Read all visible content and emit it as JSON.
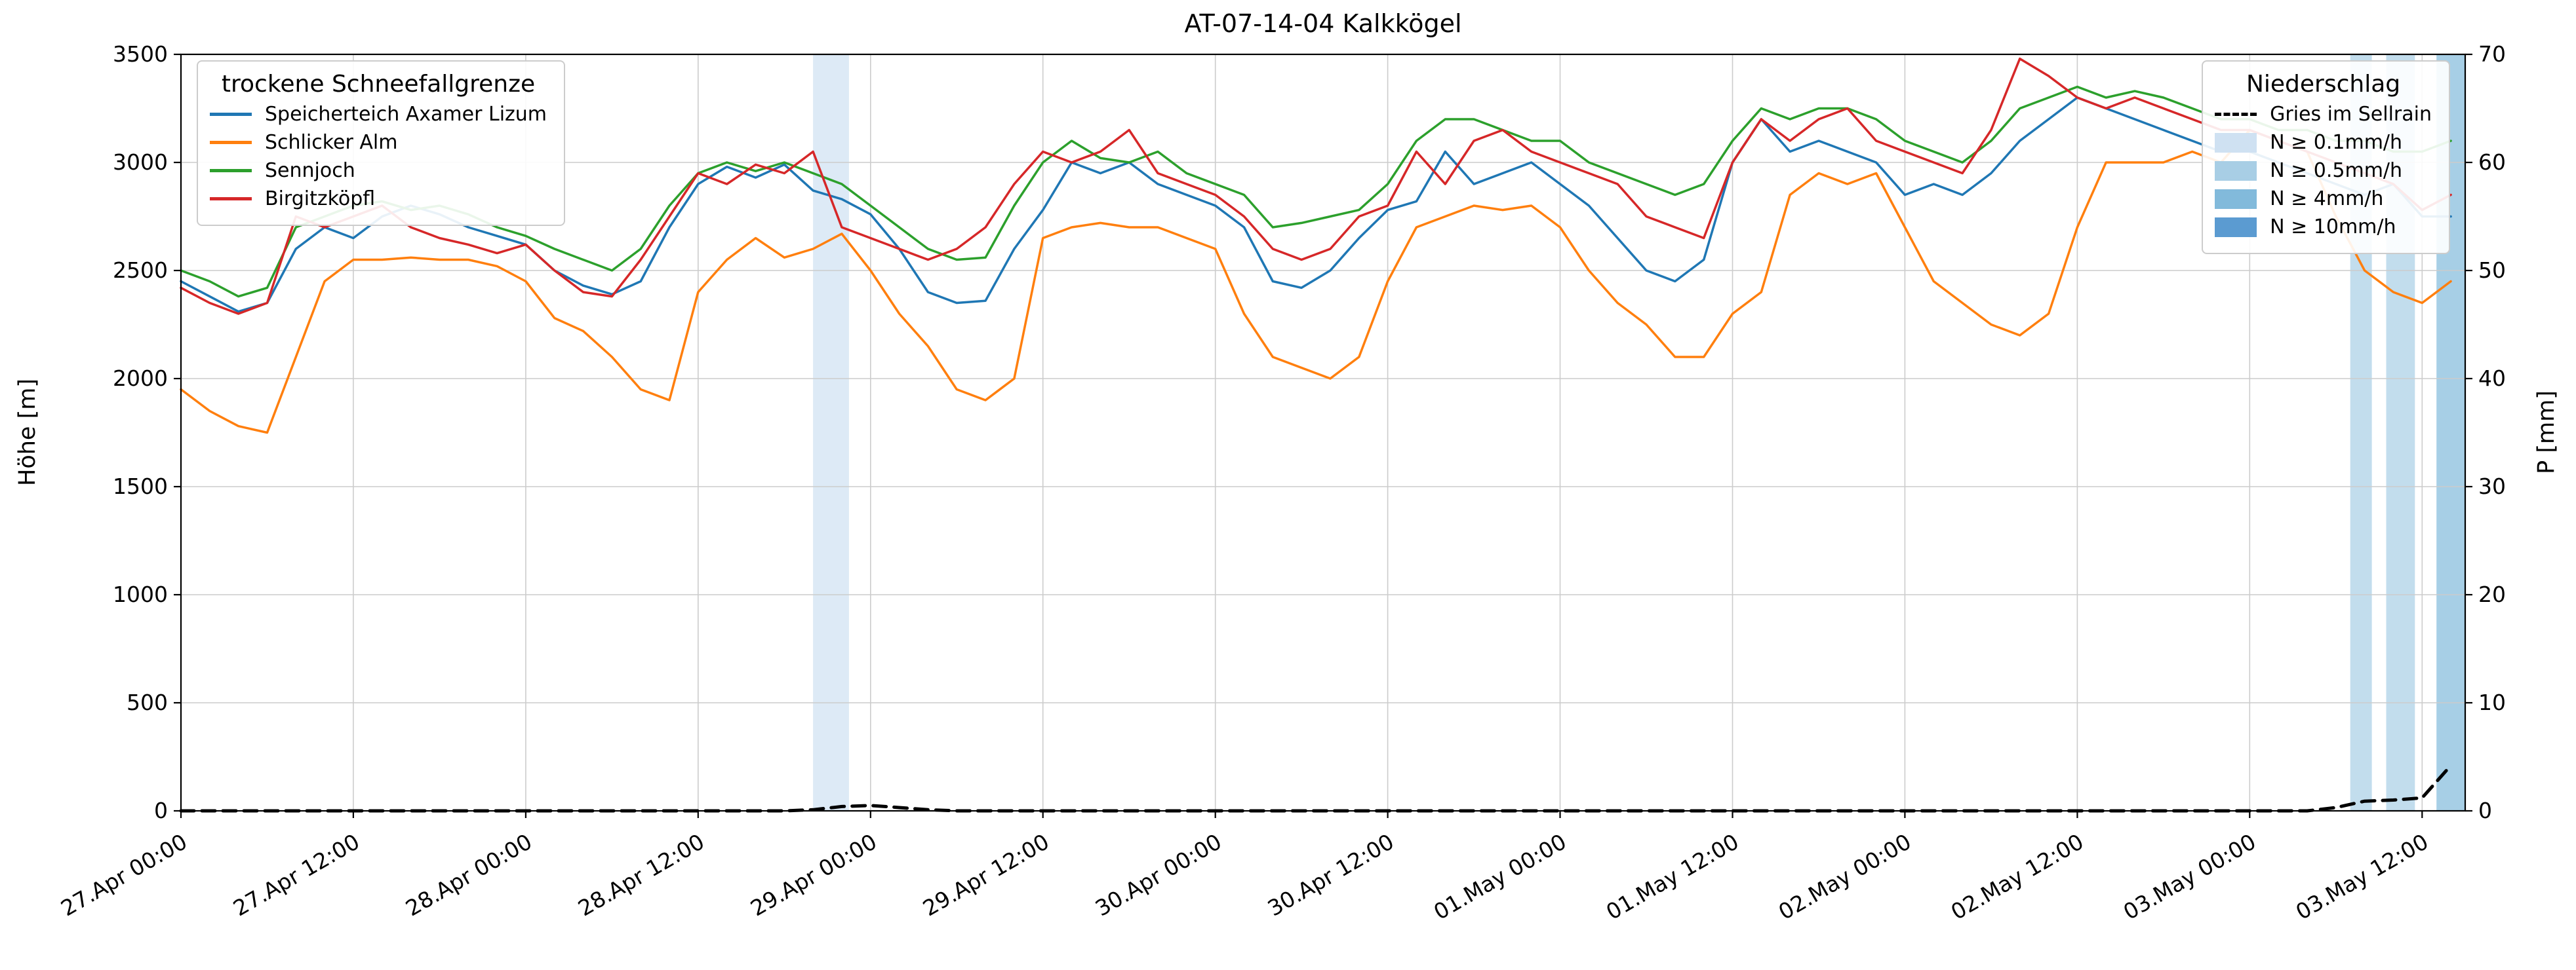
{
  "axes": {
    "y_left_label": "Höhe [m]",
    "y_right_label": "P [mm]"
  },
  "legend_snowline": {
    "title": "trockene Schneefallgrenze",
    "items": [
      {
        "label": "Speicherteich Axamer Lizum",
        "color": "#1f77b4",
        "swatch": "line"
      },
      {
        "label": "Schlicker Alm",
        "color": "#ff7f0e",
        "swatch": "line"
      },
      {
        "label": "Sennjoch",
        "color": "#2ca02c",
        "swatch": "line"
      },
      {
        "label": "Birgitzköpfl",
        "color": "#d62728",
        "swatch": "line"
      }
    ]
  },
  "legend_precip": {
    "title": "Niederschlag",
    "items": [
      {
        "label": "Gries im Sellrain",
        "color": "#000000",
        "swatch": "dashed-line"
      },
      {
        "label": "N ≥ 0.1mm/h",
        "color": "#cfe1f2",
        "swatch": "patch"
      },
      {
        "label": "N ≥ 0.5mm/h",
        "color": "#a8cee5",
        "swatch": "patch"
      },
      {
        "label": "N ≥ 4mm/h",
        "color": "#82badb",
        "swatch": "patch"
      },
      {
        "label": "N ≥ 10mm/h",
        "color": "#5b9bd1",
        "swatch": "patch"
      }
    ]
  },
  "chart_data": {
    "type": "line",
    "title": "AT-07-14-04 Kalkkögel",
    "xlabel": "",
    "ylabel_left": "Höhe [m]",
    "ylabel_right": "P [mm]",
    "xlim": [
      0,
      159
    ],
    "ylim_left": [
      0,
      3500
    ],
    "ylim_right": [
      0,
      70
    ],
    "grid": true,
    "x_tick_hours": [
      0,
      12,
      24,
      36,
      48,
      60,
      72,
      84,
      96,
      108,
      120,
      132,
      144,
      156
    ],
    "x_tick_labels": [
      "27.Apr 00:00",
      "27.Apr 12:00",
      "28.Apr 00:00",
      "28.Apr 12:00",
      "29.Apr 00:00",
      "29.Apr 12:00",
      "30.Apr 00:00",
      "30.Apr 12:00",
      "01.May 00:00",
      "01.May 12:00",
      "02.May 00:00",
      "02.May 12:00",
      "03.May 00:00",
      "03.May 12:00"
    ],
    "y_left_tick_values": [
      0,
      500,
      1000,
      1500,
      2000,
      2500,
      3000,
      3500
    ],
    "y_left_tick_labels": [
      "0",
      "500",
      "1000",
      "1500",
      "2000",
      "2500",
      "3000",
      "3500"
    ],
    "y_right_tick_values": [
      0,
      10,
      20,
      30,
      40,
      50,
      60,
      70
    ],
    "y_right_tick_labels": [
      "0",
      "10",
      "20",
      "30",
      "40",
      "50",
      "60",
      "70"
    ],
    "x_hours": [
      0,
      2,
      4,
      6,
      8,
      10,
      12,
      14,
      16,
      18,
      20,
      22,
      24,
      26,
      28,
      30,
      32,
      34,
      36,
      38,
      40,
      42,
      44,
      46,
      48,
      50,
      52,
      54,
      56,
      58,
      60,
      62,
      64,
      66,
      68,
      70,
      72,
      74,
      76,
      78,
      80,
      82,
      84,
      86,
      88,
      90,
      92,
      94,
      96,
      98,
      100,
      102,
      104,
      106,
      108,
      110,
      112,
      114,
      116,
      118,
      120,
      122,
      124,
      126,
      128,
      130,
      132,
      134,
      136,
      138,
      140,
      142,
      144,
      146,
      148,
      150,
      152,
      154,
      156,
      158
    ],
    "series": [
      {
        "id": "speicherteich-axamer-lizum",
        "name": "Speicherteich Axamer Lizum",
        "color": "#1f77b4",
        "axis": "left",
        "width": 3.5,
        "values": [
          2450,
          2380,
          2310,
          2350,
          2600,
          2700,
          2650,
          2750,
          2800,
          2760,
          2700,
          2660,
          2620,
          2500,
          2430,
          2390,
          2450,
          2700,
          2900,
          2980,
          2930,
          2990,
          2870,
          2830,
          2760,
          2600,
          2400,
          2350,
          2360,
          2600,
          2780,
          3000,
          2950,
          3000,
          2900,
          2850,
          2800,
          2700,
          2450,
          2420,
          2500,
          2650,
          2780,
          2820,
          3050,
          2900,
          2950,
          3000,
          2900,
          2800,
          2650,
          2500,
          2450,
          2550,
          3000,
          3200,
          3050,
          3100,
          3050,
          3000,
          2850,
          2900,
          2850,
          2950,
          3100,
          3200,
          3300,
          3250,
          3200,
          3150,
          3100,
          3050,
          3050,
          3000,
          2950,
          2900,
          2850,
          2900,
          2750,
          2750
        ]
      },
      {
        "id": "schlicker-alm",
        "name": "Schlicker Alm",
        "color": "#ff7f0e",
        "axis": "left",
        "width": 3.5,
        "values": [
          1950,
          1850,
          1780,
          1750,
          2100,
          2450,
          2550,
          2550,
          2560,
          2550,
          2550,
          2520,
          2450,
          2280,
          2220,
          2100,
          1950,
          1900,
          2400,
          2550,
          2650,
          2560,
          2600,
          2670,
          2500,
          2300,
          2150,
          1950,
          1900,
          2000,
          2650,
          2700,
          2720,
          2700,
          2700,
          2650,
          2600,
          2300,
          2100,
          2050,
          2000,
          2100,
          2450,
          2700,
          2750,
          2800,
          2780,
          2800,
          2700,
          2500,
          2350,
          2250,
          2100,
          2100,
          2300,
          2400,
          2850,
          2950,
          2900,
          2950,
          2700,
          2450,
          2350,
          2250,
          2200,
          2300,
          2700,
          3000,
          3000,
          3000,
          3050,
          3000,
          3150,
          3100,
          3050,
          2750,
          2500,
          2400,
          2350,
          2450
        ]
      },
      {
        "id": "sennjoch",
        "name": "Sennjoch",
        "color": "#2ca02c",
        "axis": "left",
        "width": 3.5,
        "values": [
          2500,
          2450,
          2380,
          2420,
          2700,
          2750,
          2800,
          2820,
          2780,
          2800,
          2760,
          2700,
          2660,
          2600,
          2550,
          2500,
          2600,
          2800,
          2950,
          3000,
          2960,
          3000,
          2950,
          2900,
          2800,
          2700,
          2600,
          2550,
          2560,
          2800,
          3000,
          3100,
          3020,
          3000,
          3050,
          2950,
          2900,
          2850,
          2700,
          2720,
          2750,
          2780,
          2900,
          3100,
          3200,
          3200,
          3150,
          3100,
          3100,
          3000,
          2950,
          2900,
          2850,
          2900,
          3100,
          3250,
          3200,
          3250,
          3250,
          3200,
          3100,
          3050,
          3000,
          3100,
          3250,
          3300,
          3350,
          3300,
          3330,
          3300,
          3250,
          3200,
          3200,
          3150,
          3150,
          3100,
          3100,
          3050,
          3050,
          3100
        ]
      },
      {
        "id": "birgitzkoepfl",
        "name": "Birgitzköpfl",
        "color": "#d62728",
        "axis": "left",
        "width": 3.5,
        "values": [
          2420,
          2350,
          2300,
          2350,
          2750,
          2700,
          2750,
          2800,
          2700,
          2650,
          2620,
          2580,
          2620,
          2500,
          2400,
          2380,
          2550,
          2750,
          2950,
          2900,
          2990,
          2950,
          3050,
          2700,
          2650,
          2600,
          2550,
          2600,
          2700,
          2900,
          3050,
          3000,
          3050,
          3150,
          2950,
          2900,
          2850,
          2750,
          2600,
          2550,
          2600,
          2750,
          2800,
          3050,
          2900,
          3100,
          3150,
          3050,
          3000,
          2950,
          2900,
          2750,
          2700,
          2650,
          3000,
          3200,
          3100,
          3200,
          3250,
          3100,
          3050,
          3000,
          2950,
          3150,
          3480,
          3400,
          3300,
          3250,
          3300,
          3250,
          3200,
          3150,
          3150,
          3100,
          3050,
          3000,
          2950,
          2900,
          2780,
          2850
        ]
      },
      {
        "id": "gries-im-sellrain",
        "name": "Gries im Sellrain",
        "color": "#000000",
        "axis": "right",
        "width": 5,
        "dash": "20 12",
        "values": [
          0,
          0,
          0,
          0,
          0,
          0,
          0,
          0,
          0,
          0,
          0,
          0,
          0,
          0,
          0,
          0,
          0,
          0,
          0,
          0,
          0,
          0,
          0.1,
          0.4,
          0.5,
          0.3,
          0.1,
          0,
          0,
          0,
          0,
          0,
          0,
          0,
          0,
          0,
          0,
          0,
          0,
          0,
          0,
          0,
          0,
          0,
          0,
          0,
          0,
          0,
          0,
          0,
          0,
          0,
          0,
          0,
          0,
          0,
          0,
          0,
          0,
          0,
          0,
          0,
          0,
          0,
          0,
          0,
          0,
          0,
          0,
          0,
          0,
          0,
          0,
          0,
          0,
          0.3,
          0.9,
          1.0,
          1.2,
          4.2
        ]
      }
    ],
    "precip_bands": [
      {
        "start_h": 44,
        "end_h": 46.5,
        "level": "0.1"
      },
      {
        "start_h": 151,
        "end_h": 152.5,
        "level": "0.5"
      },
      {
        "start_h": 153.5,
        "end_h": 155.5,
        "level": "0.5"
      },
      {
        "start_h": 157,
        "end_h": 159,
        "level": "4"
      }
    ],
    "band_colors": {
      "0.1": "#cfe1f2",
      "0.5": "#a8cee5",
      "4": "#82badb",
      "10": "#5b9b d1"
    }
  }
}
